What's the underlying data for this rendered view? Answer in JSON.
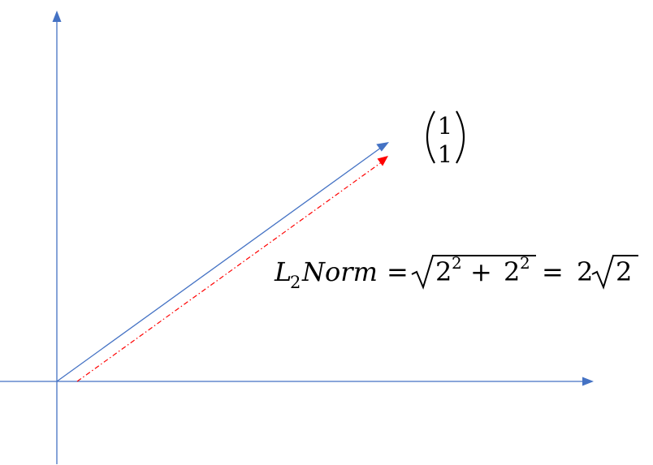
{
  "colors": {
    "axis": "#4472C4",
    "vector": "#4472C4",
    "dashed_vector": "#FF0000",
    "text": "#000000",
    "background": "#FFFFFF"
  },
  "vector_label": {
    "top": "1",
    "bottom": "1"
  },
  "equation": {
    "L": "L",
    "sub": "2",
    "norm": "Norm",
    "eq1": "=",
    "base1": "2",
    "exp1": "2",
    "plus": "+",
    "base2": "2",
    "exp2": "2",
    "eq2": "=",
    "coef": "2",
    "radicand": "2"
  }
}
